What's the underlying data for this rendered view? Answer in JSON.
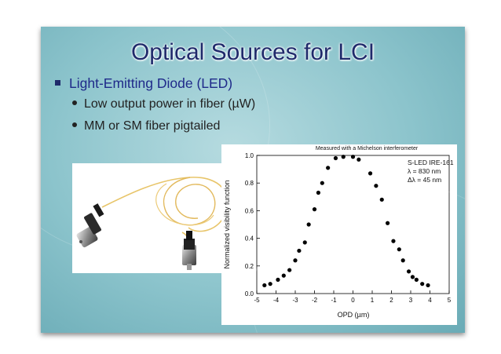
{
  "slide": {
    "title": "Optical Sources for LCI",
    "bullets": [
      {
        "text": "Light-Emitting Diode (LED)"
      }
    ],
    "sub_bullets": [
      {
        "text": "Low output power in fiber (µW)"
      },
      {
        "text": "MM or SM fiber pigtailed"
      }
    ],
    "photo_icon": "fiber-pigtailed-led-photo"
  },
  "chart_data": {
    "type": "scatter",
    "title": "Measured with a Michelson interferometer",
    "xlabel": "OPD (µm)",
    "ylabel": "Normalized visibility function",
    "xlim": [
      -5,
      5
    ],
    "ylim": [
      0.0,
      1.0
    ],
    "xticks": [
      "-5",
      "-4",
      "-3",
      "-2",
      "-1",
      "0",
      "1",
      "2",
      "3",
      "4",
      "5"
    ],
    "yticks": [
      "0.0",
      "0.2",
      "0.4",
      "0.6",
      "0.8",
      "1.0"
    ],
    "annotation": [
      "S-LED IRE-161",
      "λ = 830 nm",
      "Δλ = 45 nm"
    ],
    "grid": false,
    "x": [
      -4.6,
      -4.3,
      -3.9,
      -3.6,
      -3.3,
      -3.0,
      -2.8,
      -2.5,
      -2.3,
      -2.0,
      -1.8,
      -1.6,
      -1.3,
      -0.9,
      -0.5,
      0.0,
      0.3,
      0.9,
      1.2,
      1.5,
      1.8,
      2.1,
      2.4,
      2.6,
      2.9,
      3.1,
      3.3,
      3.6,
      3.9
    ],
    "y": [
      0.06,
      0.07,
      0.1,
      0.13,
      0.17,
      0.24,
      0.31,
      0.37,
      0.5,
      0.61,
      0.73,
      0.8,
      0.91,
      0.98,
      0.99,
      0.99,
      0.97,
      0.87,
      0.78,
      0.68,
      0.51,
      0.38,
      0.32,
      0.24,
      0.16,
      0.12,
      0.1,
      0.07,
      0.06
    ]
  }
}
